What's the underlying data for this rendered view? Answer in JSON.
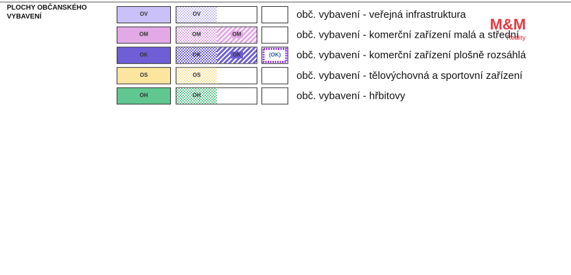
{
  "legend": {
    "title_lines": [
      "PLOCHY OBČANSKÉHO",
      "VYBAVENÍ"
    ],
    "rows": [
      {
        "code": "OV",
        "label": "obč. vybavení - veřejná infrastruktura",
        "color": "#c9c1f7",
        "hatched_diagonal": false,
        "plan_label": null
      },
      {
        "code": "OM",
        "label": "obč. vybavení - komerční zařízení malá a střední",
        "color": "#e2a9e6",
        "hatched_diagonal": true,
        "plan_label": null
      },
      {
        "code": "OK",
        "label": "obč. vybavení - komerční zařízení plošně rozsáhlá",
        "color": "#6f5ed6",
        "hatched_diagonal": true,
        "plan_label": "(OK)"
      },
      {
        "code": "OS",
        "label": "obč. vybavení - tělovýchovná a sportovní zařízení",
        "color": "#fbe59f",
        "hatched_diagonal": false,
        "plan_label": null
      },
      {
        "code": "OH",
        "label": "obč. vybavení - hřbitovy",
        "color": "#5fc78f",
        "hatched_diagonal": false,
        "plan_label": null
      }
    ]
  },
  "watermark": {
    "brand": "M&M",
    "sub": "Reality"
  }
}
